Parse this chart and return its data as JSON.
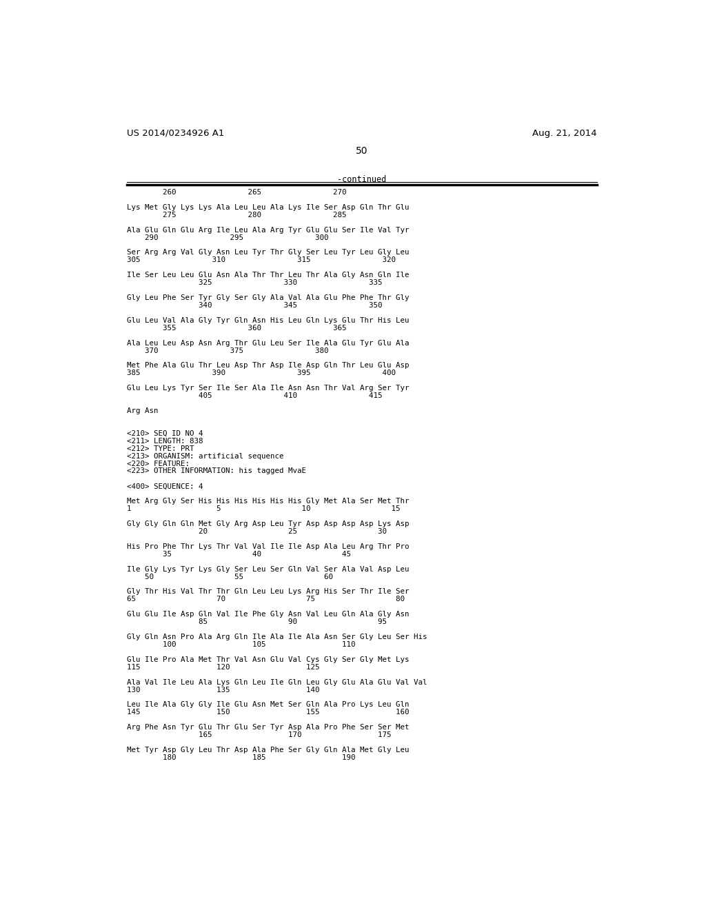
{
  "bg_color": "#ffffff",
  "header_left": "US 2014/0234926 A1",
  "header_right": "Aug. 21, 2014",
  "page_number": "50",
  "continued_label": "-continued",
  "content": [
    [
      0,
      "        260                265                270"
    ],
    [
      1,
      ""
    ],
    [
      2,
      "Lys Met Gly Lys Lys Ala Leu Leu Ala Lys Ile Ser Asp Gln Thr Glu"
    ],
    [
      3,
      "        275                280                285"
    ],
    [
      4,
      ""
    ],
    [
      5,
      "Ala Glu Gln Glu Arg Ile Leu Ala Arg Tyr Glu Glu Ser Ile Val Tyr"
    ],
    [
      6,
      "    290                295                300"
    ],
    [
      7,
      ""
    ],
    [
      8,
      "Ser Arg Arg Val Gly Asn Leu Tyr Thr Gly Ser Leu Tyr Leu Gly Leu"
    ],
    [
      9,
      "305                310                315                320"
    ],
    [
      10,
      ""
    ],
    [
      11,
      "Ile Ser Leu Leu Glu Asn Ala Thr Thr Leu Thr Ala Gly Asn Gln Ile"
    ],
    [
      12,
      "                325                330                335"
    ],
    [
      13,
      ""
    ],
    [
      14,
      "Gly Leu Phe Ser Tyr Gly Ser Gly Ala Val Ala Glu Phe Phe Thr Gly"
    ],
    [
      15,
      "                340                345                350"
    ],
    [
      16,
      ""
    ],
    [
      17,
      "Glu Leu Val Ala Gly Tyr Gln Asn His Leu Gln Lys Glu Thr His Leu"
    ],
    [
      18,
      "        355                360                365"
    ],
    [
      19,
      ""
    ],
    [
      20,
      "Ala Leu Leu Asp Asn Arg Thr Glu Leu Ser Ile Ala Glu Tyr Glu Ala"
    ],
    [
      21,
      "    370                375                380"
    ],
    [
      22,
      ""
    ],
    [
      23,
      "Met Phe Ala Glu Thr Leu Asp Thr Asp Ile Asp Gln Thr Leu Glu Asp"
    ],
    [
      24,
      "385                390                395                400"
    ],
    [
      25,
      ""
    ],
    [
      26,
      "Glu Leu Lys Tyr Ser Ile Ser Ala Ile Asn Asn Thr Val Arg Ser Tyr"
    ],
    [
      27,
      "                405                410                415"
    ],
    [
      28,
      ""
    ],
    [
      29,
      "Arg Asn"
    ],
    [
      30,
      ""
    ],
    [
      31,
      ""
    ],
    [
      32,
      "<210> SEQ ID NO 4"
    ],
    [
      33,
      "<211> LENGTH: 838"
    ],
    [
      34,
      "<212> TYPE: PRT"
    ],
    [
      35,
      "<213> ORGANISM: artificial sequence"
    ],
    [
      36,
      "<220> FEATURE:"
    ],
    [
      37,
      "<223> OTHER INFORMATION: his tagged MvaE"
    ],
    [
      38,
      ""
    ],
    [
      39,
      "<400> SEQUENCE: 4"
    ],
    [
      40,
      ""
    ],
    [
      41,
      "Met Arg Gly Ser His His His His His His Gly Met Ala Ser Met Thr"
    ],
    [
      42,
      "1                   5                  10                  15"
    ],
    [
      43,
      ""
    ],
    [
      44,
      "Gly Gly Gln Gln Met Gly Arg Asp Leu Tyr Asp Asp Asp Asp Lys Asp"
    ],
    [
      45,
      "                20                  25                  30"
    ],
    [
      46,
      ""
    ],
    [
      47,
      "His Pro Phe Thr Lys Thr Val Val Ile Ile Asp Ala Leu Arg Thr Pro"
    ],
    [
      48,
      "        35                  40                  45"
    ],
    [
      49,
      ""
    ],
    [
      50,
      "Ile Gly Lys Tyr Lys Gly Ser Leu Ser Gln Val Ser Ala Val Asp Leu"
    ],
    [
      51,
      "    50                  55                  60"
    ],
    [
      52,
      ""
    ],
    [
      53,
      "Gly Thr His Val Thr Thr Gln Leu Leu Lys Arg His Ser Thr Ile Ser"
    ],
    [
      54,
      "65                  70                  75                  80"
    ],
    [
      55,
      ""
    ],
    [
      56,
      "Glu Glu Ile Asp Gln Val Ile Phe Gly Asn Val Leu Gln Ala Gly Asn"
    ],
    [
      57,
      "                85                  90                  95"
    ],
    [
      58,
      ""
    ],
    [
      59,
      "Gly Gln Asn Pro Ala Arg Gln Ile Ala Ile Ala Asn Ser Gly Leu Ser His"
    ],
    [
      60,
      "        100                 105                 110"
    ],
    [
      61,
      ""
    ],
    [
      62,
      "Glu Ile Pro Ala Met Thr Val Asn Glu Val Cys Gly Ser Gly Met Lys"
    ],
    [
      63,
      "115                 120                 125"
    ],
    [
      64,
      ""
    ],
    [
      65,
      "Ala Val Ile Leu Ala Lys Gln Leu Ile Gln Leu Gly Glu Ala Glu Val Val"
    ],
    [
      66,
      "130                 135                 140"
    ],
    [
      67,
      ""
    ],
    [
      68,
      "Leu Ile Ala Gly Gly Ile Glu Asn Met Ser Gln Ala Pro Lys Leu Gln"
    ],
    [
      69,
      "145                 150                 155                 160"
    ],
    [
      70,
      ""
    ],
    [
      71,
      "Arg Phe Asn Tyr Glu Thr Glu Ser Tyr Asp Ala Pro Phe Ser Ser Met"
    ],
    [
      72,
      "                165                 170                 175"
    ],
    [
      73,
      ""
    ],
    [
      74,
      "Met Tyr Asp Gly Leu Thr Asp Ala Phe Ser Gly Gln Ala Met Gly Leu"
    ],
    [
      75,
      "        180                 185                 190"
    ]
  ]
}
